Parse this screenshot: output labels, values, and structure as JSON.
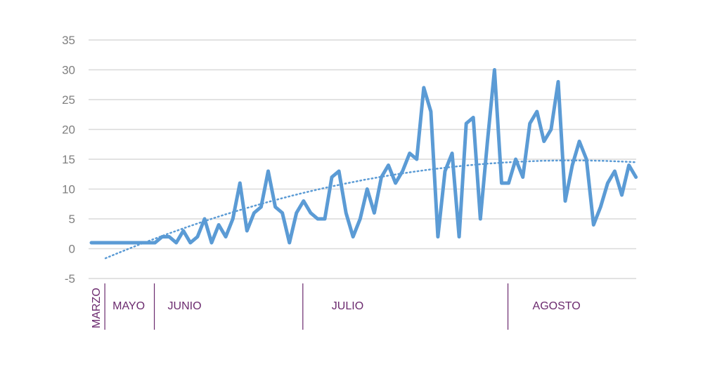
{
  "chart_data": {
    "type": "line",
    "title": "",
    "xlabel": "",
    "ylabel": "",
    "ylim": [
      -5,
      35
    ],
    "yticks": [
      35,
      30,
      25,
      20,
      15,
      10,
      5,
      0,
      -5
    ],
    "grid": true,
    "legend": "none",
    "months": [
      {
        "label": "MARZO",
        "start": 0,
        "end": 2,
        "vertical": true
      },
      {
        "label": "MAYO",
        "start": 2,
        "end": 9
      },
      {
        "label": "JUNIO",
        "start": 9,
        "end": 30
      },
      {
        "label": "JULIO",
        "start": 30,
        "end": 59
      },
      {
        "label": "AGOSTO",
        "start": 59,
        "end": 78
      }
    ],
    "series": [
      {
        "kind": "daily",
        "color": "#5b9bd5",
        "values": [
          1,
          1,
          1,
          1,
          1,
          1,
          1,
          1,
          1,
          1,
          2,
          2,
          1,
          3,
          1,
          2,
          5,
          1,
          4,
          2,
          5,
          11,
          3,
          6,
          7,
          13,
          7,
          6,
          1,
          6,
          8,
          6,
          5,
          5,
          12,
          13,
          6,
          2,
          5,
          10,
          6,
          12,
          14,
          11,
          13,
          16,
          15,
          27,
          23,
          2,
          13,
          16,
          2,
          21,
          22,
          5,
          18,
          30,
          11,
          11,
          15,
          12,
          21,
          23,
          18,
          20,
          28,
          8,
          14,
          18,
          15,
          4,
          7,
          11,
          13,
          9,
          14,
          12
        ]
      },
      {
        "kind": "trend",
        "style": "dotted",
        "color": "#5b9bd5",
        "x_start": 2,
        "x_end": 77,
        "values_at_ends": [
          -1.6,
          14.6
        ],
        "peak": {
          "x": 68,
          "y": 14.8
        }
      }
    ]
  }
}
